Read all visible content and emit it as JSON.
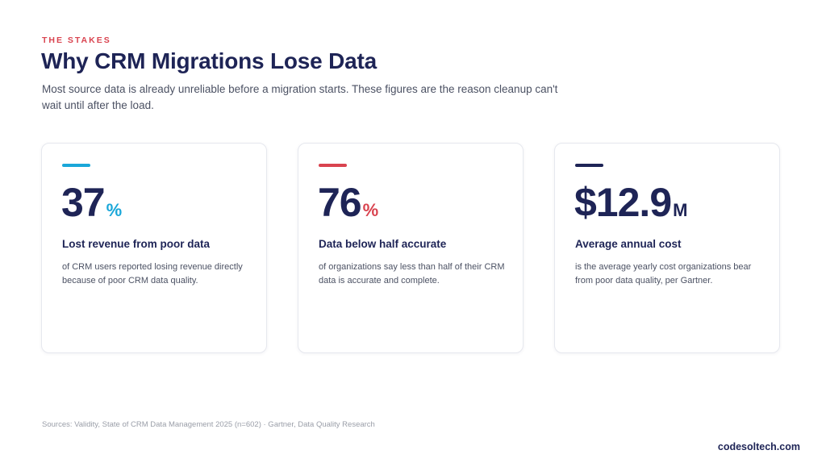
{
  "header": {
    "eyebrow": "THE STAKES",
    "title": "Why CRM Migrations Lose Data",
    "subtitle": "Most source data is already unreliable before a migration starts. These figures are the reason cleanup can't wait until after the load."
  },
  "colors": {
    "navy": "#1e2456",
    "accent_red": "#d9434f",
    "accent_blue": "#1aa7d9"
  },
  "cards": [
    {
      "value": "37",
      "unit": "%",
      "accent_color": "#1aa7d9",
      "heading": "Lost revenue from poor data",
      "body": "of CRM users reported losing revenue directly because of poor CRM data quality."
    },
    {
      "value": "76",
      "unit": "%",
      "accent_color": "#d9434f",
      "heading": "Data below half accurate",
      "body": "of organizations say less than half of their CRM data is accurate and complete."
    },
    {
      "value": "$12.9",
      "unit": "M",
      "accent_color": "#1e2456",
      "heading": "Average annual cost",
      "body": "is the average yearly cost organizations bear from poor data quality, per Gartner."
    }
  ],
  "footer": {
    "sources": "Sources: Validity, State of CRM Data Management 2025 (n=602)  ·  Gartner, Data Quality Research",
    "brand": "codesoltech.com"
  }
}
